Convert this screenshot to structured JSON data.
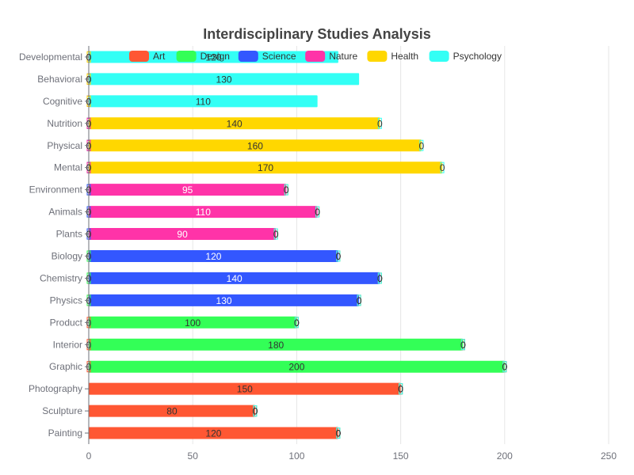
{
  "chart_data": {
    "type": "bar",
    "orientation": "horizontal",
    "stacked": true,
    "title": "Interdisciplinary Studies Analysis",
    "xlabel": "",
    "ylabel": "",
    "xlim": [
      0,
      250
    ],
    "x_ticks": [
      0,
      50,
      100,
      150,
      200,
      250
    ],
    "grid": "vertical",
    "legend_position": "top",
    "categories": [
      "Painting",
      "Sculpture",
      "Photography",
      "Graphic",
      "Interior",
      "Product",
      "Physics",
      "Chemistry",
      "Biology",
      "Plants",
      "Animals",
      "Environment",
      "Mental",
      "Physical",
      "Nutrition",
      "Cognitive",
      "Behavioral",
      "Developmental"
    ],
    "series": [
      {
        "name": "Art",
        "color": "#ff5733",
        "label_color": "#333333",
        "values": [
          120,
          80,
          150,
          0,
          0,
          0,
          0,
          0,
          0,
          0,
          0,
          0,
          0,
          0,
          0,
          0,
          0,
          0
        ]
      },
      {
        "name": "Design",
        "color": "#33ff57",
        "label_color": "#333333",
        "values": [
          0,
          0,
          0,
          200,
          180,
          100,
          0,
          0,
          0,
          0,
          0,
          0,
          0,
          0,
          0,
          0,
          0,
          0
        ]
      },
      {
        "name": "Science",
        "color": "#3357ff",
        "label_color": "#ffffff",
        "values": [
          0,
          0,
          0,
          0,
          0,
          0,
          130,
          140,
          120,
          0,
          0,
          0,
          0,
          0,
          0,
          0,
          0,
          0
        ]
      },
      {
        "name": "Nature",
        "color": "#ff33a8",
        "label_color": "#ffffff",
        "values": [
          0,
          0,
          0,
          0,
          0,
          0,
          0,
          0,
          0,
          90,
          110,
          95,
          0,
          0,
          0,
          0,
          0,
          0
        ]
      },
      {
        "name": "Health",
        "color": "#ffd700",
        "label_color": "#333333",
        "values": [
          0,
          0,
          0,
          0,
          0,
          0,
          0,
          0,
          0,
          0,
          0,
          0,
          170,
          160,
          140,
          0,
          0,
          0
        ]
      },
      {
        "name": "Psychology",
        "color": "#33fff5",
        "label_color": "#333333",
        "values": [
          0,
          0,
          0,
          0,
          0,
          0,
          0,
          0,
          0,
          0,
          0,
          0,
          0,
          0,
          0,
          110,
          130,
          120
        ]
      }
    ]
  }
}
